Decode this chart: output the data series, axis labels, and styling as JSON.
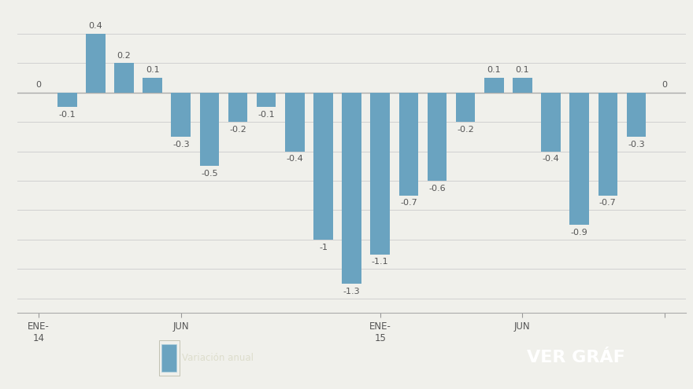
{
  "values": [
    0.0,
    -0.1,
    0.4,
    0.2,
    0.1,
    -0.3,
    -0.5,
    -0.2,
    -0.1,
    -0.4,
    -1.0,
    -1.3,
    -1.1,
    -0.7,
    -0.6,
    -0.2,
    0.1,
    0.1,
    -0.4,
    -0.9,
    -0.7,
    -0.3,
    0.0
  ],
  "x_tick_positions": [
    0,
    5,
    12,
    17,
    22
  ],
  "x_tick_labels": [
    "ENE-\n14",
    "JUN",
    "ENE-\n15",
    "JUN",
    ""
  ],
  "bar_color": "#6aA3C0",
  "background_color": "#f0f0eb",
  "grid_color": "#cccccc",
  "ylim": [
    -1.5,
    0.55
  ],
  "legend_label": "Variación anual",
  "legend_box_color": "#6aA3C0",
  "footer_bg_color": "#7a7a72",
  "footer_text": "VER GRÁF",
  "label_fontsize": 8.0,
  "xtick_fontsize": 8.5,
  "axis_label_color": "#777777"
}
